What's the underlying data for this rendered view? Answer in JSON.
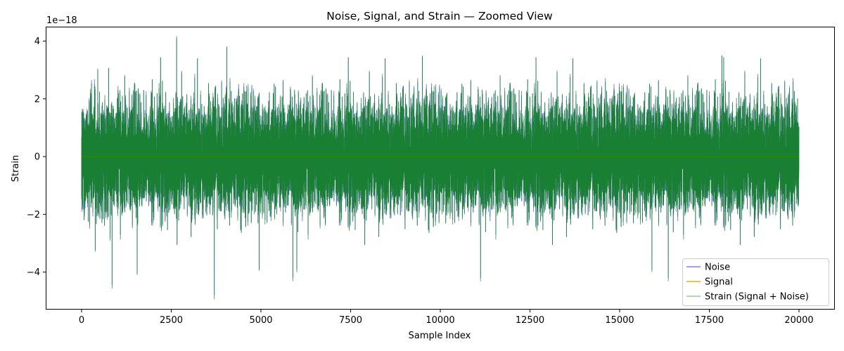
{
  "chart_data": {
    "type": "line",
    "title": "Noise, Signal, and Strain — Zoomed View",
    "xlabel": "Sample Index",
    "ylabel": "Strain",
    "offset_text": "1e−18",
    "xlim": [
      -1000,
      21000
    ],
    "ylim": [
      -5.3,
      4.5
    ],
    "y_scale_exponent": -18,
    "x_ticks": [
      0,
      2500,
      5000,
      7500,
      10000,
      12500,
      15000,
      17500,
      20000
    ],
    "x_tick_labels": [
      "0",
      "2500",
      "5000",
      "7500",
      "10000",
      "12500",
      "15000",
      "17500",
      "20000"
    ],
    "y_ticks": [
      -4,
      -2,
      0,
      2,
      4
    ],
    "y_tick_labels": [
      "−4",
      "−2",
      "0",
      "2",
      "4"
    ],
    "grid": false,
    "legend_position": "bottom-right",
    "series": [
      {
        "name": "Noise",
        "color": "#0000ff",
        "opacity": 0.5,
        "n_points": 20000,
        "std": 0.9,
        "x_range": [
          0,
          20000
        ]
      },
      {
        "name": "Signal",
        "color": "#ffa500",
        "opacity": 1.0,
        "n_points": 20000,
        "values_approx": 0,
        "x_range": [
          0,
          20000
        ]
      },
      {
        "name": "Strain (Signal + Noise)",
        "color": "#008000",
        "opacity": 0.8,
        "n_points": 20000,
        "std": 0.9,
        "x_range": [
          0,
          20000
        ]
      }
    ],
    "notable_extrema": [
      {
        "x": 2650,
        "y": 4.1
      },
      {
        "x": 4050,
        "y": 3.8
      },
      {
        "x": 3700,
        "y": -4.8
      },
      {
        "x": 850,
        "y": -4.45
      },
      {
        "x": 1550,
        "y": -4.1
      },
      {
        "x": 15900,
        "y": -4.0
      },
      {
        "x": 4950,
        "y": -3.9
      },
      {
        "x": 6000,
        "y": -3.9
      },
      {
        "x": 9500,
        "y": 3.5
      },
      {
        "x": 17850,
        "y": 3.5
      }
    ]
  }
}
